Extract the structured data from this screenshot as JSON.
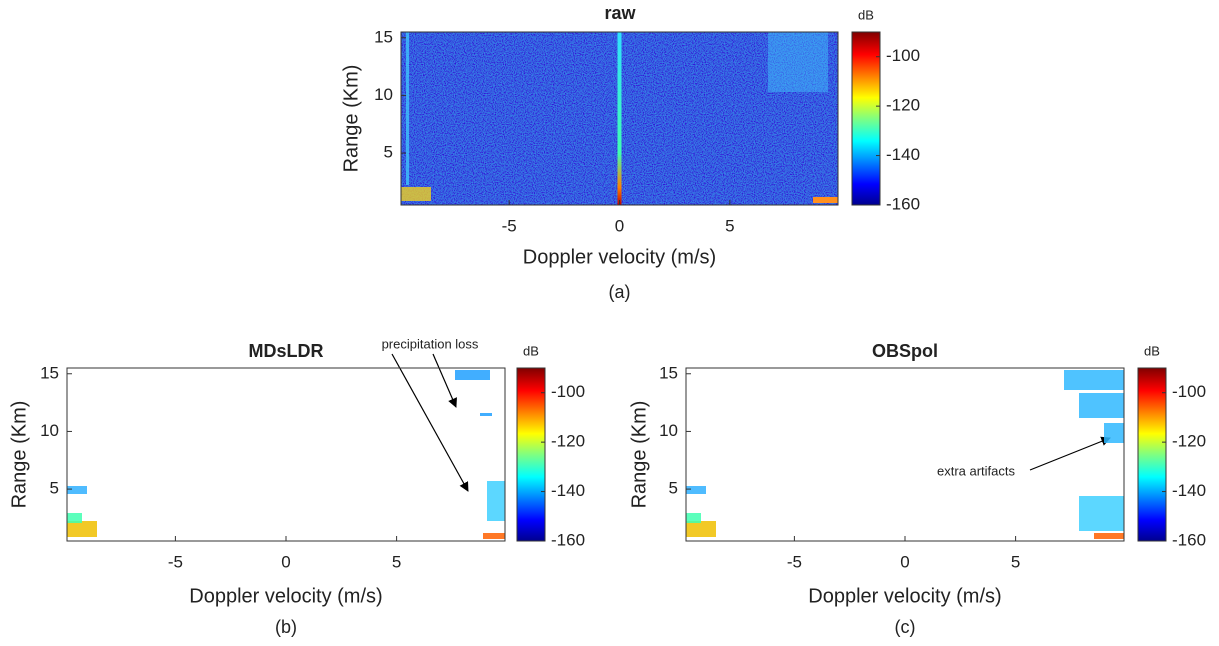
{
  "chart_data": [
    {
      "type": "heatmap",
      "title": "raw",
      "xlabel": "Doppler velocity (m/s)",
      "ylabel": "Range (Km)",
      "caption": "(a)",
      "xlim": [
        -9.9,
        9.9
      ],
      "ylim": [
        0.5,
        15.5
      ],
      "xticks": [
        -5,
        0,
        5
      ],
      "yticks": [
        5,
        10,
        15
      ],
      "colorbar": {
        "label": "dB",
        "lim": [
          -160,
          -90
        ],
        "ticks": [
          -160,
          -140,
          -120,
          -100
        ]
      }
    },
    {
      "type": "heatmap",
      "title": "MDsLDR",
      "xlabel": "Doppler velocity (m/s)",
      "ylabel": "Range (Km)",
      "caption": "(b)",
      "xlim": [
        -9.9,
        9.9
      ],
      "ylim": [
        0.5,
        15.5
      ],
      "xticks": [
        -5,
        0,
        5
      ],
      "yticks": [
        5,
        10,
        15
      ],
      "colorbar": {
        "label": "dB",
        "lim": [
          -160,
          -90
        ],
        "ticks": [
          -160,
          -140,
          -120,
          -100
        ]
      },
      "annotation": "precipitation loss"
    },
    {
      "type": "heatmap",
      "title": "OBSpol",
      "xlabel": "Doppler velocity (m/s)",
      "ylabel": "Range (Km)",
      "caption": "(c)",
      "xlim": [
        -9.9,
        9.9
      ],
      "ylim": [
        0.5,
        15.5
      ],
      "xticks": [
        -5,
        0,
        5
      ],
      "yticks": [
        5,
        10,
        15
      ],
      "colorbar": {
        "label": "dB",
        "lim": [
          -160,
          -90
        ],
        "ticks": [
          -160,
          -140,
          -120,
          -100
        ]
      },
      "annotation": "extra artifacts"
    }
  ]
}
